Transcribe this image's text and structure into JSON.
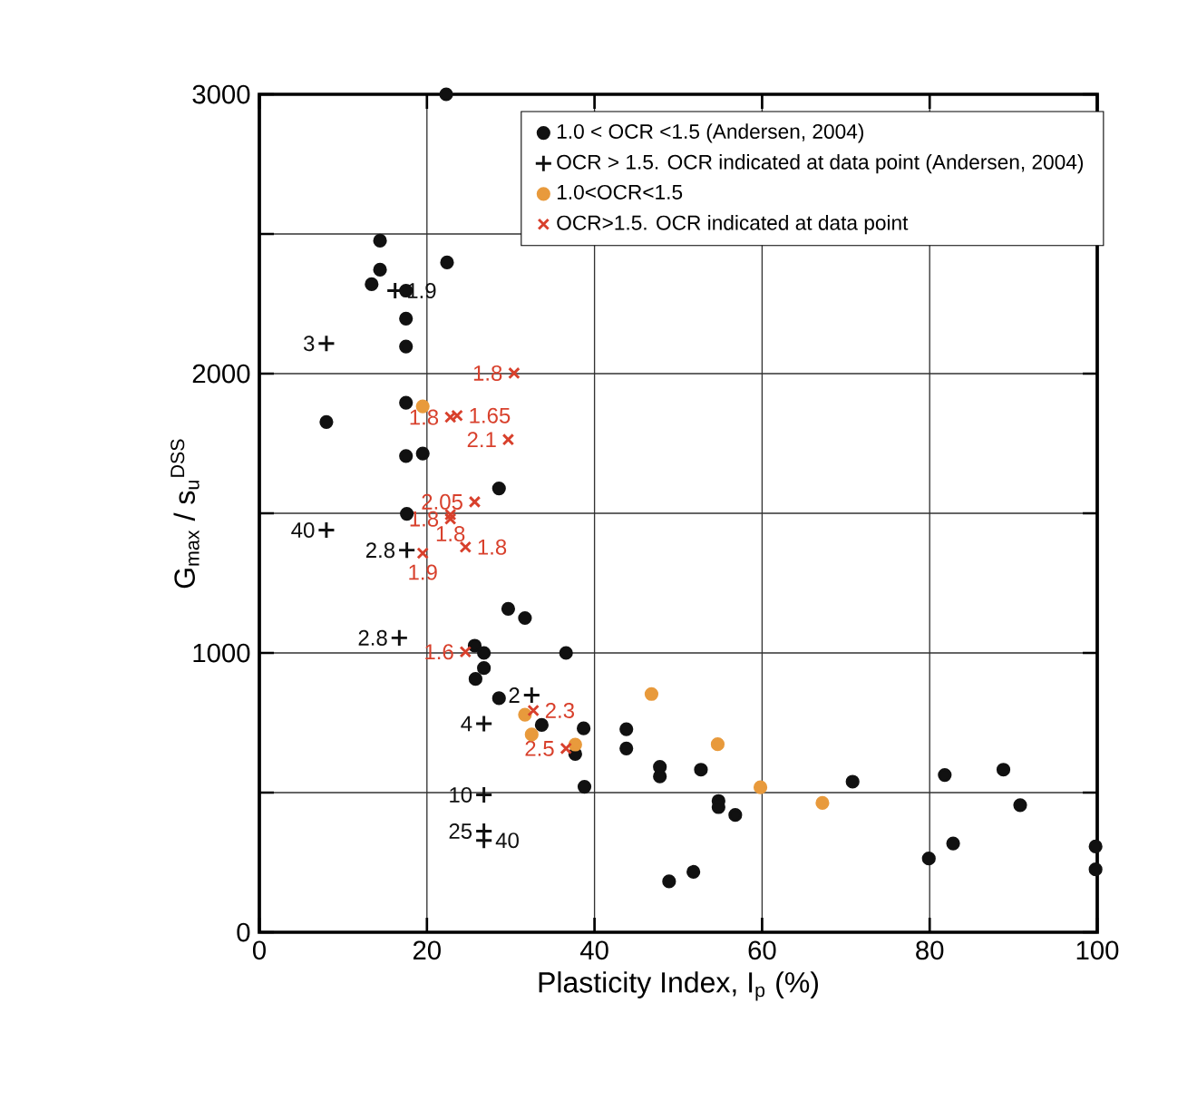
{
  "chart_data": {
    "type": "scatter",
    "xlabel": "Plasticity Index, I$_{p}$ (%)",
    "ylabel": "G$_{max}$ / s$_{u}$$^{DSS}$",
    "xlim": [
      0,
      100
    ],
    "ylim": [
      0,
      3000
    ],
    "xticks": [
      0,
      20,
      40,
      60,
      80,
      100
    ],
    "yticks": [
      0,
      {
        "value": 500,
        "label": null
      },
      1000,
      {
        "value": 1500,
        "label": null
      },
      2000,
      {
        "value": 2500,
        "label": null
      },
      3000
    ],
    "grid": true,
    "legend": "top right",
    "series": [
      {
        "name": "1.0 < OCR <1.5  (Andersen, 2004)",
        "color": "#111111",
        "marker": "circle",
        "x": [
          22.3,
          14.4,
          14.4,
          22.4,
          13.4,
          17.5,
          17.5,
          17.5,
          17.5,
          8.0,
          17.5,
          19.5,
          28.6,
          17.6,
          29.7,
          31.7,
          25.7,
          26.8,
          36.6,
          26.8,
          25.8,
          28.6,
          33.7,
          38.7,
          37.7,
          38.8,
          43.8,
          43.8,
          47.8,
          47.8,
          52.7,
          54.8,
          54.8,
          56.8,
          70.8,
          48.9,
          51.8,
          81.8,
          88.8,
          90.8,
          79.9,
          82.8,
          99.8,
          99.8
        ],
        "values": [
          3000,
          2476,
          2372,
          2398,
          2320,
          2297,
          2197,
          2097,
          1896,
          1827,
          1705,
          1714,
          1589,
          1498,
          1158,
          1125,
          1026,
          1000,
          1000,
          946,
          907,
          838,
          742,
          730,
          638,
          521,
          727,
          658,
          592,
          558,
          582,
          470,
          448,
          420,
          539,
          182,
          216,
          563,
          582,
          455,
          264,
          318,
          307,
          225
        ]
      },
      {
        "name": "OCR > 1.5. OCR indicated at data point  (Andersen, 2004)",
        "color": "#111111",
        "marker": "plus",
        "x": [
          16.2,
          8.0,
          8.0,
          17.6,
          16.7,
          32.5,
          26.8,
          26.8,
          26.8,
          26.8
        ],
        "values": [
          2297,
          2108,
          1440,
          1368,
          1054,
          849,
          747,
          492,
          362,
          329
        ]
      },
      {
        "name": "1.0<OCR<1.5",
        "color": "#e89a3c",
        "marker": "circle",
        "x": [
          19.5,
          31.7,
          32.5,
          37.7,
          46.8,
          54.7,
          59.8,
          67.2
        ],
        "values": [
          1883,
          779,
          708,
          672,
          853,
          673,
          519,
          463
        ]
      },
      {
        "name": "OCR>1.5. OCR indicated at data point",
        "color": "#d8402c",
        "marker": "cross",
        "x": [
          30.4,
          22.8,
          23.6,
          29.7,
          25.7,
          22.8,
          22.8,
          19.5,
          24.6,
          24.6,
          32.7,
          36.6
        ],
        "values": [
          2002,
          1844,
          1850,
          1764,
          1541,
          1495,
          1480,
          1357,
          1379,
          1004,
          794,
          658
        ]
      }
    ],
    "annotations": [
      {
        "text": "1.9",
        "x": 16.2,
        "y": 2297
      },
      {
        "text": "3",
        "x": 8.0,
        "y": 2108
      },
      {
        "text": "40",
        "x": 8.0,
        "y": 1440
      },
      {
        "text": "2.8",
        "x": 17.6,
        "y": 1368
      },
      {
        "text": "2.8",
        "x": 16.7,
        "y": 1054
      },
      {
        "text": "2",
        "x": 32.5,
        "y": 849
      },
      {
        "text": "4",
        "x": 26.8,
        "y": 747
      },
      {
        "text": "10",
        "x": 26.8,
        "y": 492
      },
      {
        "text": "25",
        "x": 26.8,
        "y": 362
      },
      {
        "text": "40",
        "x": 26.8,
        "y": 329
      },
      {
        "text": "1.8",
        "x": 30.4,
        "y": 2002
      },
      {
        "text": "1.8",
        "x": 22.8,
        "y": 1844
      },
      {
        "text": "1.65",
        "x": 23.6,
        "y": 1850
      },
      {
        "text": "2.1",
        "x": 29.7,
        "y": 1764
      },
      {
        "text": "2.05",
        "x": 25.7,
        "y": 1541
      },
      {
        "text": "1.8",
        "x": 22.8,
        "y": 1495
      },
      {
        "text": "1.8",
        "x": 22.8,
        "y": 1480
      },
      {
        "text": "1.9",
        "x": 19.5,
        "y": 1357
      },
      {
        "text": "1.8",
        "x": 24.6,
        "y": 1379
      },
      {
        "text": "1.6",
        "x": 24.6,
        "y": 1004
      },
      {
        "text": "2.3",
        "x": 32.7,
        "y": 794
      },
      {
        "text": "2.5",
        "x": 36.6,
        "y": 658
      }
    ]
  }
}
